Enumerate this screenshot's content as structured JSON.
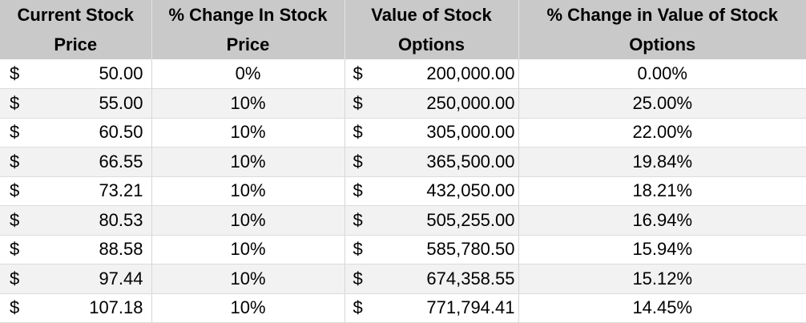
{
  "table": {
    "headers": {
      "current_price": [
        "Current Stock",
        "Price"
      ],
      "pct_change_price": [
        "% Change In Stock",
        "Price"
      ],
      "value_options": [
        "Value of Stock",
        "Options"
      ],
      "pct_change_value": [
        "% Change in Value of Stock",
        "Options"
      ]
    },
    "currency_symbol": "$",
    "rows": [
      {
        "current_price": "50.00",
        "pct_change_price": "0%",
        "value_options": "200,000.00",
        "pct_change_value": "0.00%"
      },
      {
        "current_price": "55.00",
        "pct_change_price": "10%",
        "value_options": "250,000.00",
        "pct_change_value": "25.00%"
      },
      {
        "current_price": "60.50",
        "pct_change_price": "10%",
        "value_options": "305,000.00",
        "pct_change_value": "22.00%"
      },
      {
        "current_price": "66.55",
        "pct_change_price": "10%",
        "value_options": "365,500.00",
        "pct_change_value": "19.84%"
      },
      {
        "current_price": "73.21",
        "pct_change_price": "10%",
        "value_options": "432,050.00",
        "pct_change_value": "18.21%"
      },
      {
        "current_price": "80.53",
        "pct_change_price": "10%",
        "value_options": "505,255.00",
        "pct_change_value": "16.94%"
      },
      {
        "current_price": "88.58",
        "pct_change_price": "10%",
        "value_options": "585,780.50",
        "pct_change_value": "15.94%"
      },
      {
        "current_price": "97.44",
        "pct_change_price": "10%",
        "value_options": "674,358.55",
        "pct_change_value": "15.12%"
      },
      {
        "current_price": "107.18",
        "pct_change_price": "10%",
        "value_options": "771,794.41",
        "pct_change_value": "14.45%"
      }
    ]
  }
}
